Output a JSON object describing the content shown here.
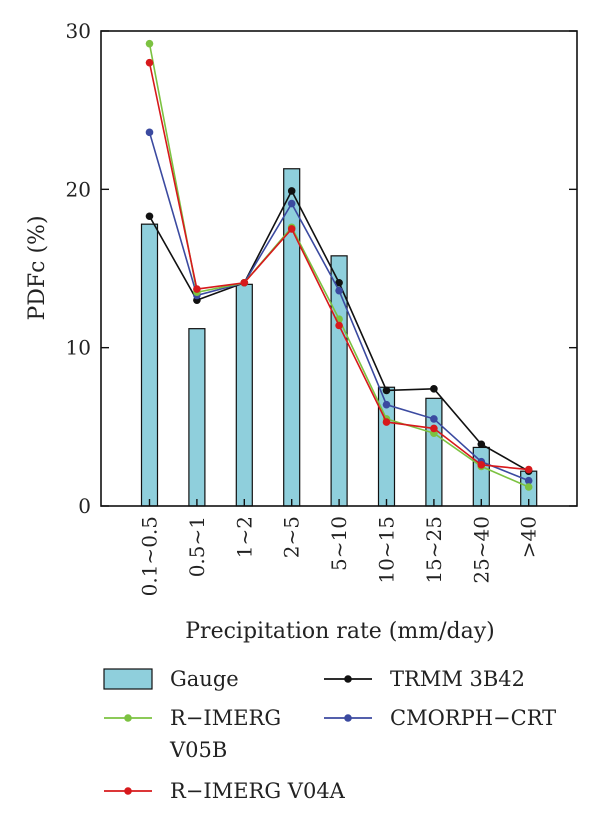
{
  "chart_data": {
    "type": "bar",
    "xlabel": "Precipitation rate (mm/day)",
    "ylabel": "PDFc (%)",
    "ylim": [
      0,
      30
    ],
    "yticks": [
      0,
      10,
      20,
      30
    ],
    "categories": [
      "0.1~0.5",
      "0.5~1",
      "1~2",
      "2~5",
      "5~10",
      "10~15",
      "15~25",
      "25~40",
      ">40"
    ],
    "bars": {
      "name": "Gauge",
      "color": "#8fcfdc",
      "values": [
        17.8,
        11.2,
        14.0,
        21.3,
        15.8,
        7.5,
        6.8,
        3.7,
        2.2
      ]
    },
    "series": [
      {
        "name": "TRMM 3B42",
        "color": "#111111",
        "values": [
          18.3,
          13.0,
          14.1,
          19.9,
          14.1,
          7.3,
          7.4,
          3.9,
          2.2
        ]
      },
      {
        "name": "CMORPH−CRT",
        "color": "#3b4aa0",
        "values": [
          23.6,
          13.3,
          14.1,
          19.1,
          13.6,
          6.4,
          5.5,
          2.8,
          1.6
        ]
      },
      {
        "name": "R−IMERG V05B",
        "color": "#7cc241",
        "values": [
          29.2,
          13.5,
          14.1,
          17.6,
          11.8,
          5.5,
          4.6,
          2.5,
          1.2
        ]
      },
      {
        "name": "R−IMERG V04A",
        "color": "#d7191c",
        "values": [
          28.0,
          13.7,
          14.1,
          17.5,
          11.4,
          5.3,
          4.9,
          2.6,
          2.3
        ]
      }
    ],
    "legend": {
      "position": "bottom",
      "items": [
        {
          "label": "Gauge",
          "kind": "bar",
          "color": "#8fcfdc"
        },
        {
          "label": "TRMM 3B42",
          "kind": "line",
          "color": "#111111"
        },
        {
          "label": "R−IMERG",
          "label2": "V05B",
          "kind": "line",
          "color": "#7cc241"
        },
        {
          "label": "CMORPH−CRT",
          "kind": "line",
          "color": "#3b4aa0"
        },
        {
          "label": "R−IMERG V04A",
          "kind": "line",
          "color": "#d7191c"
        }
      ]
    },
    "grid": false
  }
}
